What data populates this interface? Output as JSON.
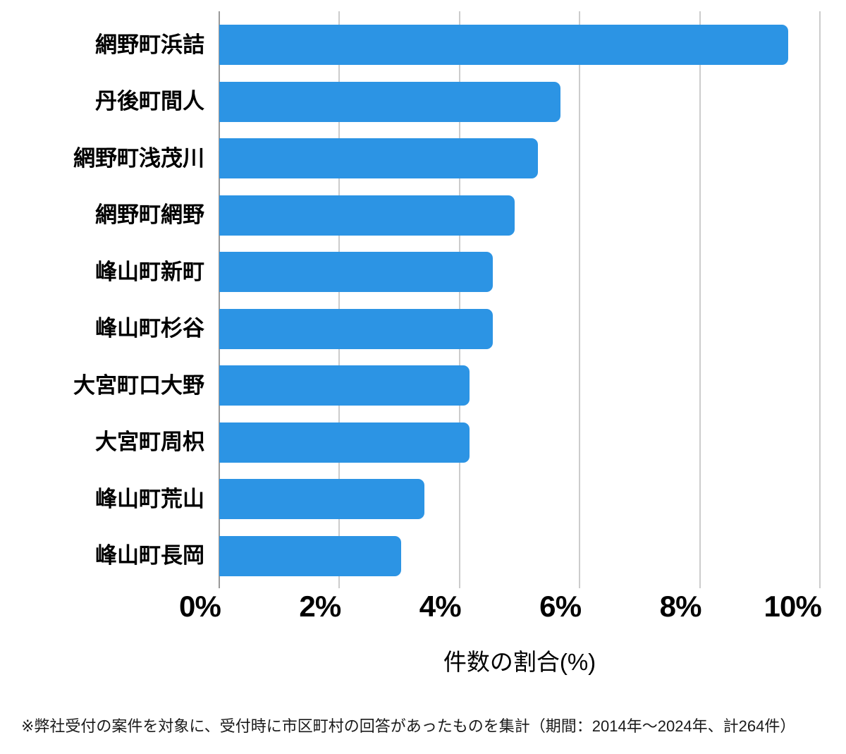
{
  "chart_data": {
    "type": "bar",
    "orientation": "horizontal",
    "title": "",
    "categories": [
      "網野町浜詰",
      "丹後町間人",
      "網野町浅茂川",
      "網野町網野",
      "峰山町新町",
      "峰山町杉谷",
      "大宮町口大野",
      "大宮町周枳",
      "峰山町荒山",
      "峰山町長岡"
    ],
    "values": [
      9.47,
      5.68,
      5.3,
      4.92,
      4.55,
      4.55,
      4.17,
      4.17,
      3.41,
      3.03
    ],
    "xlabel": "件数の割合(%)",
    "ylabel": "",
    "xlim": [
      0,
      10
    ],
    "x_tick_labels": [
      "0%",
      "2%",
      "4%",
      "6%",
      "8%",
      "10%"
    ],
    "x_tick_values": [
      0,
      2,
      4,
      6,
      8,
      10
    ],
    "grid": true,
    "legend": "none",
    "bar_color": "#2C94E4",
    "gridline_color": "#CCCCCC",
    "zero_line_color": "#999999",
    "text_color": "#000000"
  },
  "footnote": "※弊社受付の案件を対象に、受付時に市区町村の回答があったものを集計（期間：2014年～2024年、計264件）"
}
